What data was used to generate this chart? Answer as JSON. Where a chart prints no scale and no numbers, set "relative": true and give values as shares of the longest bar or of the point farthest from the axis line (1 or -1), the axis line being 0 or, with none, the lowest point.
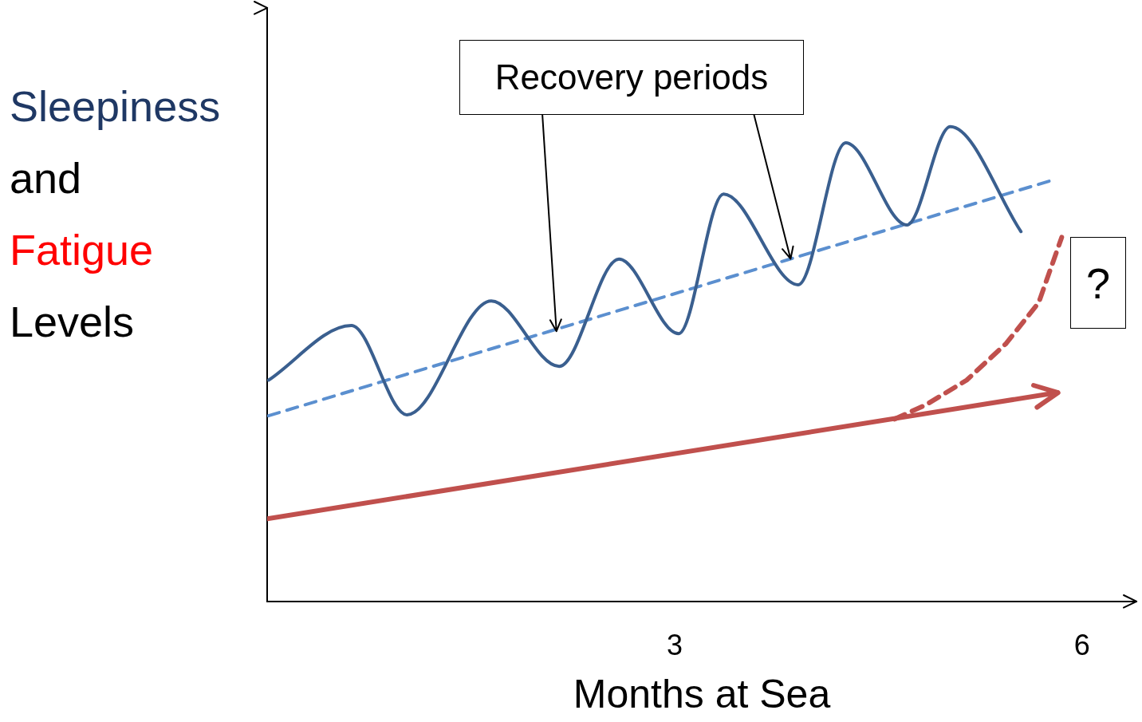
{
  "chart_data": {
    "type": "line",
    "relative": true,
    "ylabel": "Sleepiness and Fatigue Levels",
    "xlabel": "Months at Sea",
    "xlim": [
      0,
      6.4
    ],
    "xticks": [
      3,
      6
    ],
    "grid": false,
    "legend": false,
    "marker": "none",
    "series": [
      {
        "color": "#3a5f8f",
        "line_style": "solid",
        "x": [
          0.01,
          0.62,
          1.03,
          1.65,
          2.15,
          2.59,
          3.03,
          3.36,
          3.91,
          4.26,
          4.71,
          5.03,
          5.55
        ],
        "values": [
          0.466,
          0.581,
          0.393,
          0.633,
          0.495,
          0.721,
          0.564,
          0.858,
          0.667,
          0.966,
          0.793,
          1.0,
          0.779
        ]
      },
      {
        "color": "#5b8fcf",
        "line_style": "dashed",
        "x": [
          0.01,
          5.79
        ],
        "values": [
          0.391,
          0.888
        ]
      },
      {
        "color": "#c0504d",
        "line_style": "solid",
        "x": [
          0,
          5.82
        ],
        "values": [
          0.174,
          0.44
        ]
      },
      {
        "color": "#c0504d",
        "line_style": "dashed",
        "x": [
          4.62,
          4.85,
          5.15,
          5.44,
          5.68,
          5.85
        ],
        "values": [
          0.384,
          0.414,
          0.466,
          0.543,
          0.629,
          0.767
        ]
      }
    ],
    "annotations": [
      {
        "text": "Recovery periods",
        "x": 2.13,
        "y": 0.569
      },
      "?"
    ]
  }
}
